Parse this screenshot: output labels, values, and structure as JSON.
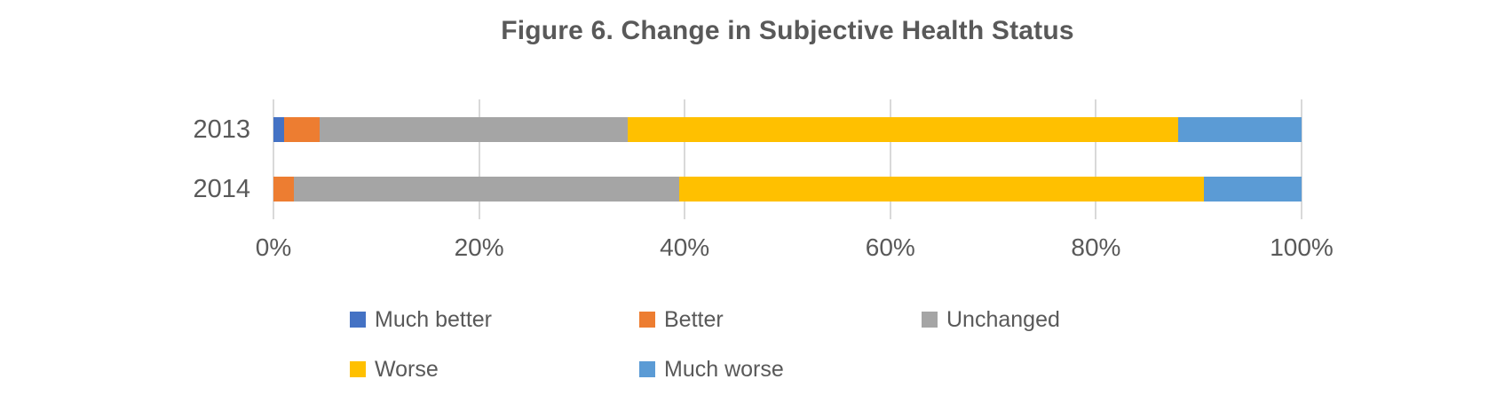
{
  "title": "Figure 6. Change in Subjective Health Status",
  "colors": {
    "text": "#595959",
    "gridline": "#D9D9D9",
    "background": "#FFFFFF"
  },
  "chart_data": {
    "type": "bar",
    "orientation": "horizontal",
    "stacked": true,
    "title": "Figure 6. Change in Subjective Health Status",
    "categories": [
      "2013",
      "2014"
    ],
    "series": [
      {
        "name": "Much better",
        "color": "#4472C4",
        "values": [
          1,
          0
        ]
      },
      {
        "name": "Better",
        "color": "#ED7D31",
        "values": [
          3.5,
          2
        ]
      },
      {
        "name": "Unchanged",
        "color": "#A5A5A5",
        "values": [
          30,
          37.5
        ]
      },
      {
        "name": "Worse",
        "color": "#FFC000",
        "values": [
          53.5,
          51
        ]
      },
      {
        "name": "Much worse",
        "color": "#5B9BD5",
        "values": [
          12,
          9.5
        ]
      }
    ],
    "x_axis": {
      "min": 0,
      "max": 100,
      "tick_labels": [
        "0%",
        "20%",
        "40%",
        "60%",
        "80%",
        "100%"
      ]
    },
    "grid": true,
    "legend_position": "bottom",
    "legend_rows": [
      [
        "Much better",
        "Better",
        "Unchanged"
      ],
      [
        "Worse",
        "Much worse"
      ]
    ]
  }
}
